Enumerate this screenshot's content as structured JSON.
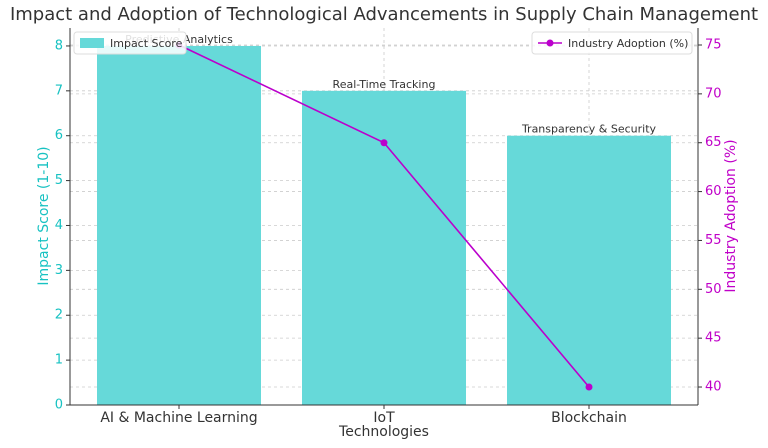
{
  "chart_data": {
    "type": "bar",
    "title": "Impact and Adoption of Technological Advancements in Supply Chain Management",
    "xlabel": "Technologies",
    "ylabel": "Impact Score (1-10)",
    "y2label": "Industry Adoption (%)",
    "categories": [
      "AI & Machine Learning",
      "IoT",
      "Blockchain"
    ],
    "annotations": [
      "Predictive Analytics",
      "Real-Time Tracking",
      "Transparency & Security"
    ],
    "series": [
      {
        "name": "Impact Score",
        "type": "bar",
        "color": "#66d9d9",
        "values": [
          8,
          7,
          6
        ]
      },
      {
        "name": "Industry Adoption (%)",
        "type": "line",
        "axis": "y2",
        "color": "#bb00cc",
        "values": [
          75,
          65,
          40
        ]
      }
    ],
    "ylim": [
      0,
      8.4
    ],
    "yticks": [
      0,
      1,
      2,
      3,
      4,
      5,
      6,
      7,
      8
    ],
    "y2lim": [
      38.16,
      76.74
    ],
    "y2ticks": [
      40,
      45,
      50,
      55,
      60,
      65,
      70,
      75
    ],
    "grid": true,
    "legend_loc": "upper left",
    "legend2_loc": "upper right"
  }
}
